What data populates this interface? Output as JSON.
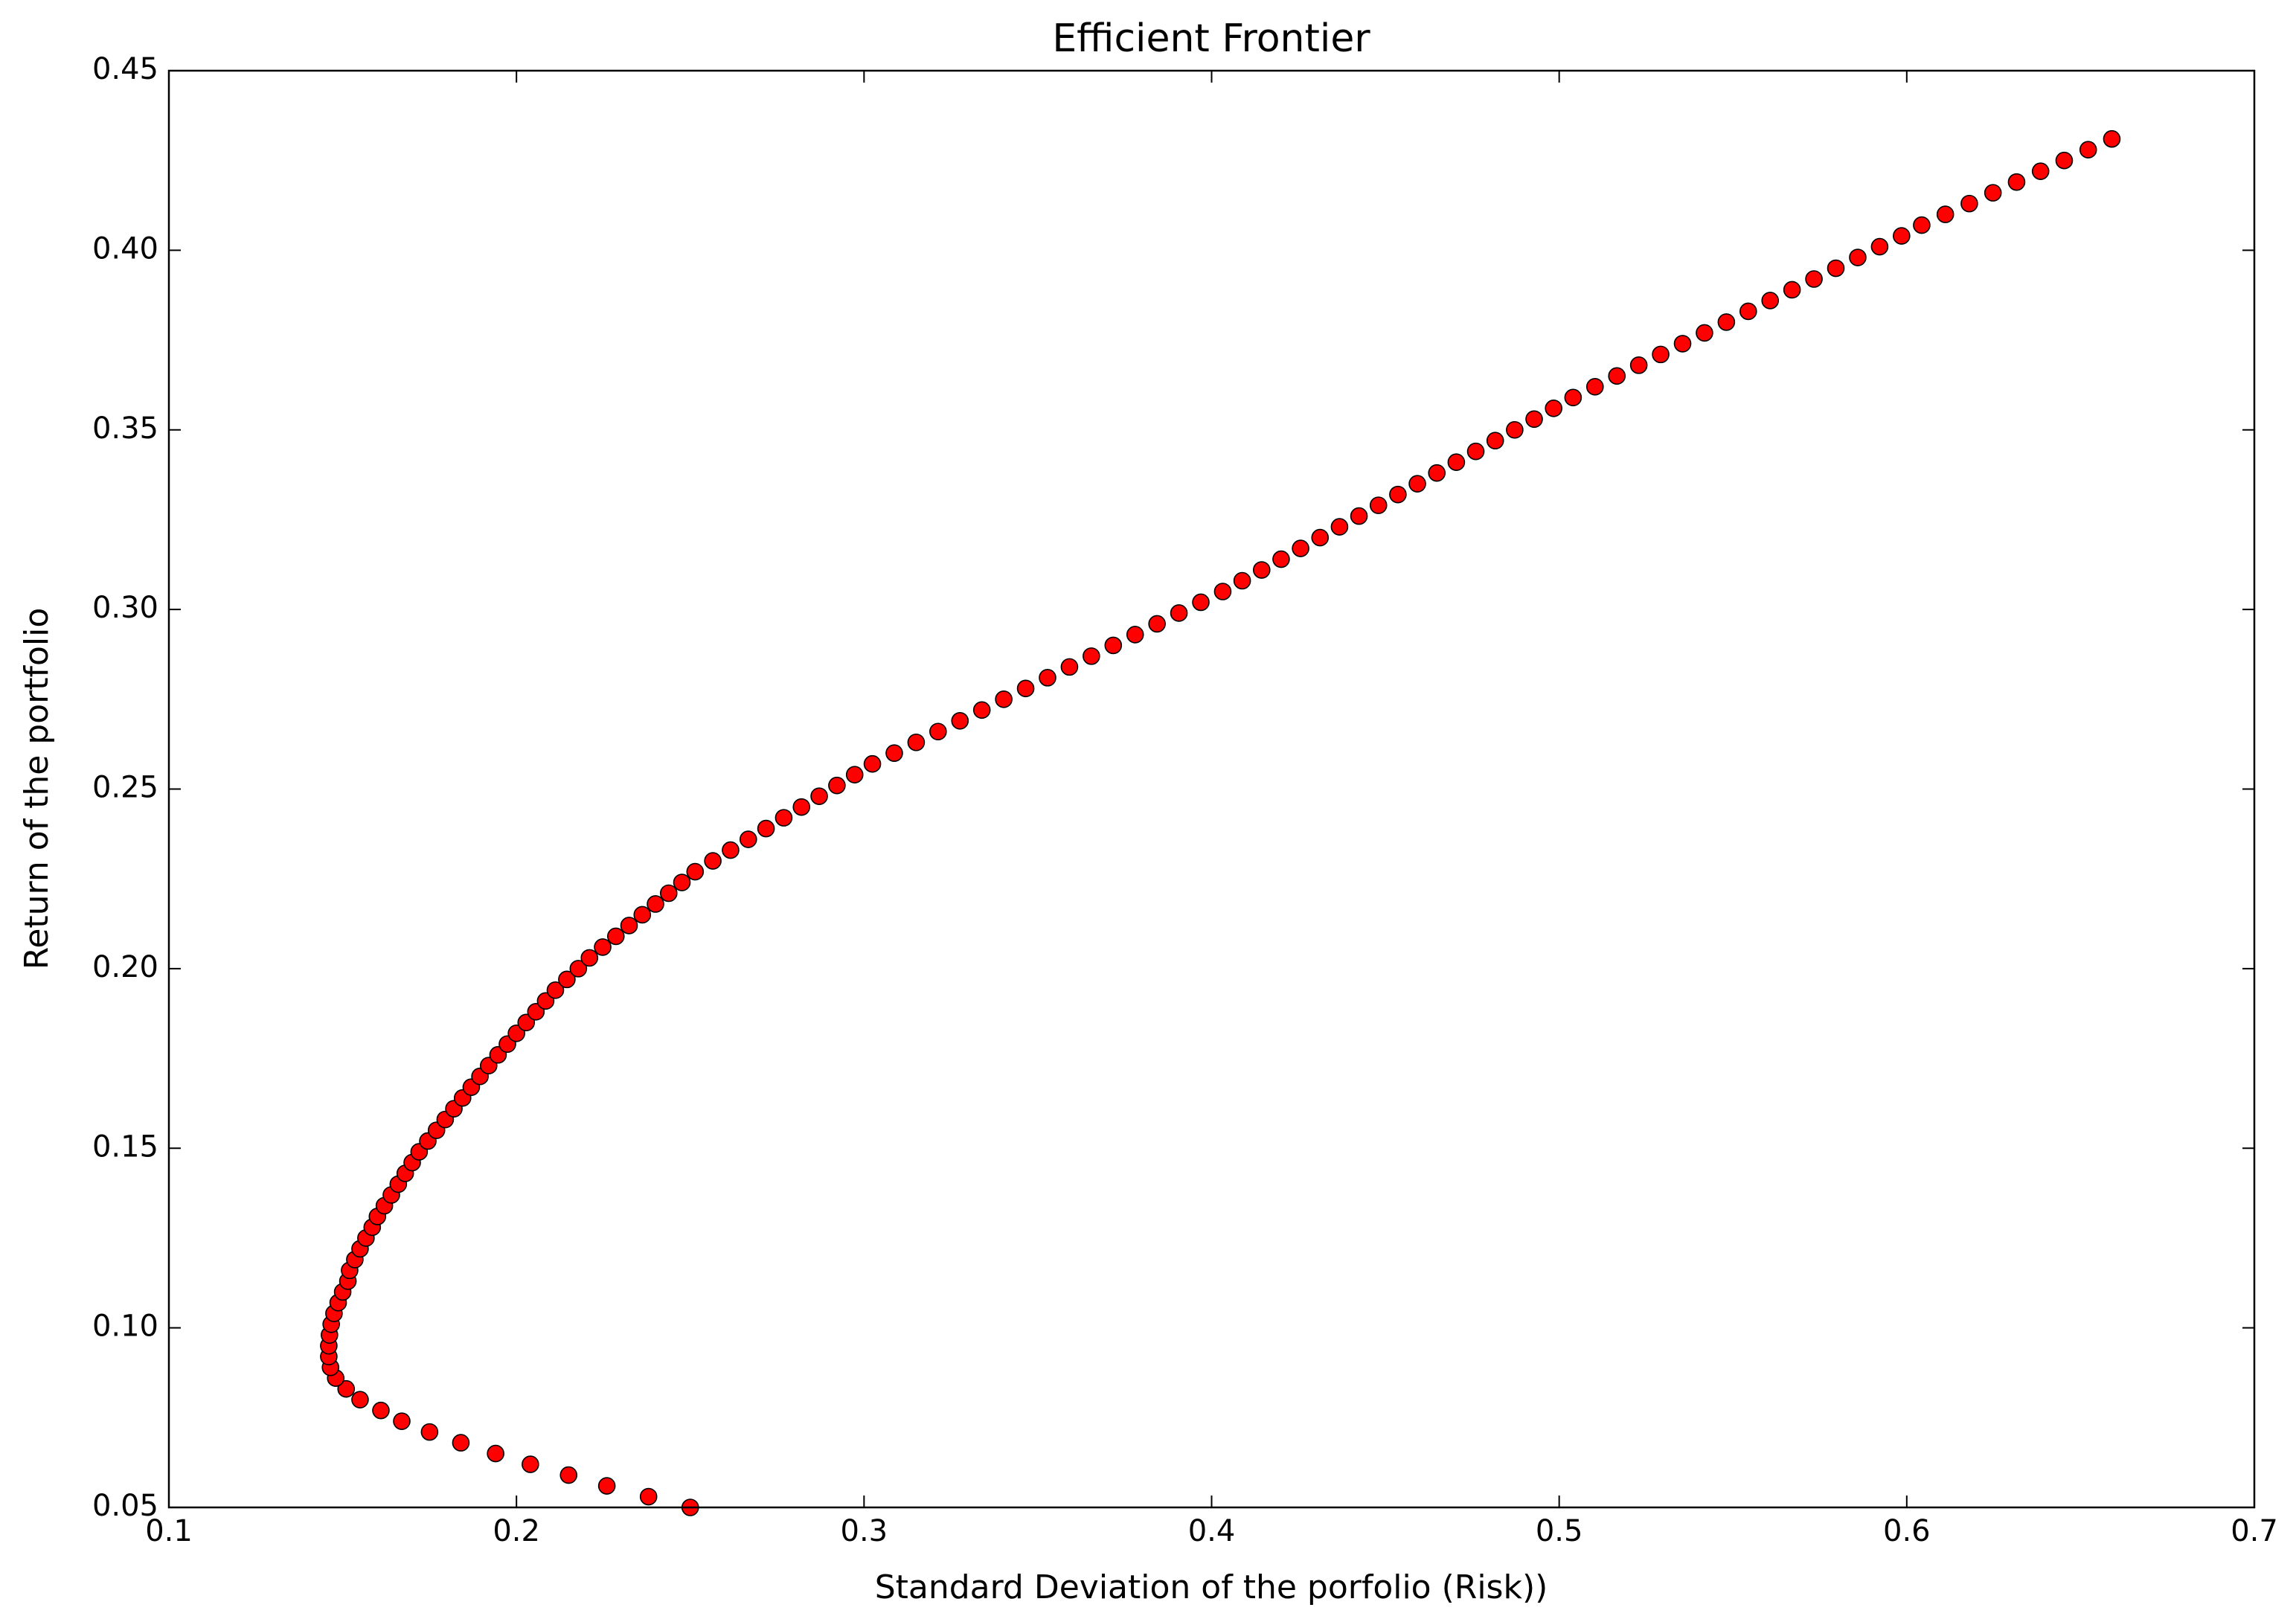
{
  "chart_data": {
    "type": "scatter",
    "title": "Efficient Frontier",
    "x_label": "Standard Deviation of the porfolio (Risk))",
    "y_label": "Return of the portfolio",
    "color": "#ff0000",
    "edge_color": "#000000",
    "grid": false,
    "xlim": [
      0.1,
      0.7
    ],
    "ylim": [
      0.05,
      0.45
    ],
    "xticks": [
      0.1,
      0.2,
      0.3,
      0.4,
      0.5,
      0.6,
      0.7
    ],
    "yticks": [
      0.05,
      {
        "value": 0.1,
        "label": "0.10"
      },
      0.15,
      {
        "value": 0.2,
        "label": "0.20"
      },
      0.25,
      {
        "value": 0.3,
        "label": "0.30"
      },
      0.35,
      {
        "value": 0.4,
        "label": "0.40"
      },
      0.45
    ],
    "x": [
      0.25,
      0.238,
      0.226,
      0.215,
      0.204,
      0.194,
      0.184,
      0.175,
      0.167,
      0.161,
      0.155,
      0.151,
      0.148,
      0.1465,
      0.146,
      0.146,
      0.1462,
      0.1467,
      0.1475,
      0.1487,
      0.15,
      0.1515,
      0.152,
      0.1535,
      0.155,
      0.1567,
      0.1585,
      0.16,
      0.162,
      0.164,
      0.166,
      0.168,
      0.17,
      0.172,
      0.1745,
      0.177,
      0.1795,
      0.182,
      0.1845,
      0.187,
      0.1895,
      0.192,
      0.1947,
      0.1974,
      0.2,
      0.2028,
      0.2056,
      0.2084,
      0.2112,
      0.2145,
      0.2178,
      0.221,
      0.2248,
      0.2286,
      0.2324,
      0.2362,
      0.24,
      0.2438,
      0.2476,
      0.2514,
      0.2565,
      0.2616,
      0.2667,
      0.2718,
      0.2769,
      0.282,
      0.2871,
      0.2922,
      0.2973,
      0.3024,
      0.3087,
      0.315,
      0.3213,
      0.3276,
      0.3339,
      0.3402,
      0.3465,
      0.3528,
      0.3591,
      0.3654,
      0.3717,
      0.378,
      0.3843,
      0.3906,
      0.3969,
      0.4032,
      0.4088,
      0.4144,
      0.42,
      0.4256,
      0.4312,
      0.4368,
      0.4424,
      0.448,
      0.4536,
      0.4592,
      0.4648,
      0.4704,
      0.476,
      0.4816,
      0.4872,
      0.4928,
      0.4984,
      0.504,
      0.5103,
      0.5166,
      0.5229,
      0.5292,
      0.5355,
      0.5418,
      0.5481,
      0.5544,
      0.5607,
      0.567,
      0.5733,
      0.5796,
      0.5859,
      0.5922,
      0.5985,
      0.6043,
      0.6111,
      0.618,
      0.6248,
      0.6316,
      0.6385,
      0.6453,
      0.6522,
      0.659
    ],
    "values": [
      0.05,
      0.053,
      0.056,
      0.059,
      0.062,
      0.065,
      0.068,
      0.071,
      0.074,
      0.077,
      0.08,
      0.083,
      0.086,
      0.089,
      0.092,
      0.095,
      0.098,
      0.101,
      0.104,
      0.107,
      0.11,
      0.113,
      0.116,
      0.119,
      0.122,
      0.125,
      0.128,
      0.131,
      0.134,
      0.137,
      0.14,
      0.143,
      0.146,
      0.149,
      0.152,
      0.155,
      0.158,
      0.161,
      0.164,
      0.167,
      0.17,
      0.173,
      0.176,
      0.179,
      0.182,
      0.185,
      0.188,
      0.191,
      0.194,
      0.197,
      0.2,
      0.203,
      0.206,
      0.209,
      0.212,
      0.215,
      0.218,
      0.221,
      0.224,
      0.227,
      0.23,
      0.233,
      0.236,
      0.239,
      0.242,
      0.245,
      0.248,
      0.251,
      0.254,
      0.257,
      0.26,
      0.263,
      0.266,
      0.269,
      0.272,
      0.275,
      0.278,
      0.281,
      0.284,
      0.287,
      0.29,
      0.293,
      0.296,
      0.299,
      0.302,
      0.305,
      0.308,
      0.311,
      0.314,
      0.317,
      0.32,
      0.323,
      0.326,
      0.329,
      0.332,
      0.335,
      0.338,
      0.341,
      0.344,
      0.347,
      0.35,
      0.353,
      0.356,
      0.359,
      0.362,
      0.365,
      0.368,
      0.371,
      0.374,
      0.377,
      0.38,
      0.383,
      0.386,
      0.389,
      0.392,
      0.395,
      0.398,
      0.401,
      0.404,
      0.407,
      0.41,
      0.413,
      0.416,
      0.419,
      0.422,
      0.425,
      0.428,
      0.431
    ]
  }
}
